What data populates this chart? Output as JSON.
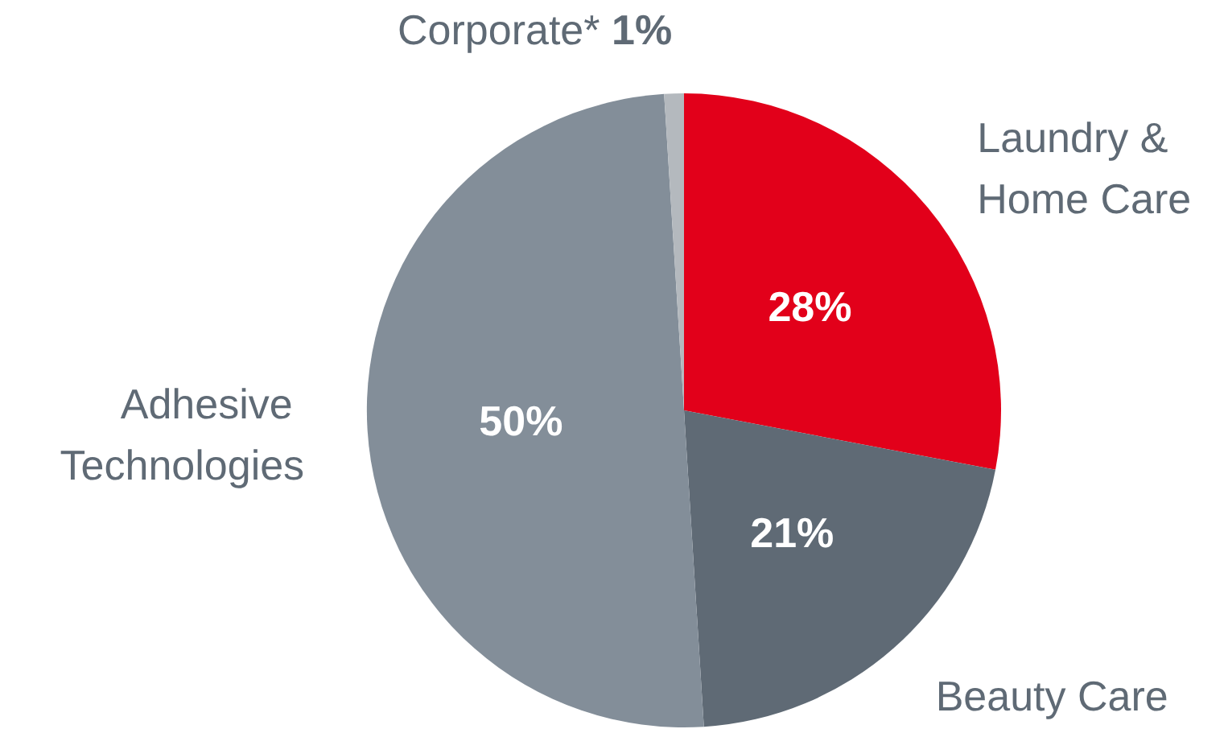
{
  "chart_data": {
    "type": "pie",
    "categories": [
      "Laundry & Home Care",
      "Beauty Care",
      "Adhesive Technologies",
      "Corporate*"
    ],
    "values": [
      28,
      21,
      50,
      1
    ],
    "colors": [
      "#e2001a",
      "#5f6a75",
      "#838e99",
      "#b4b9be"
    ],
    "value_labels": [
      "28%",
      "21%",
      "50%",
      "1%"
    ],
    "legend": false
  }
}
